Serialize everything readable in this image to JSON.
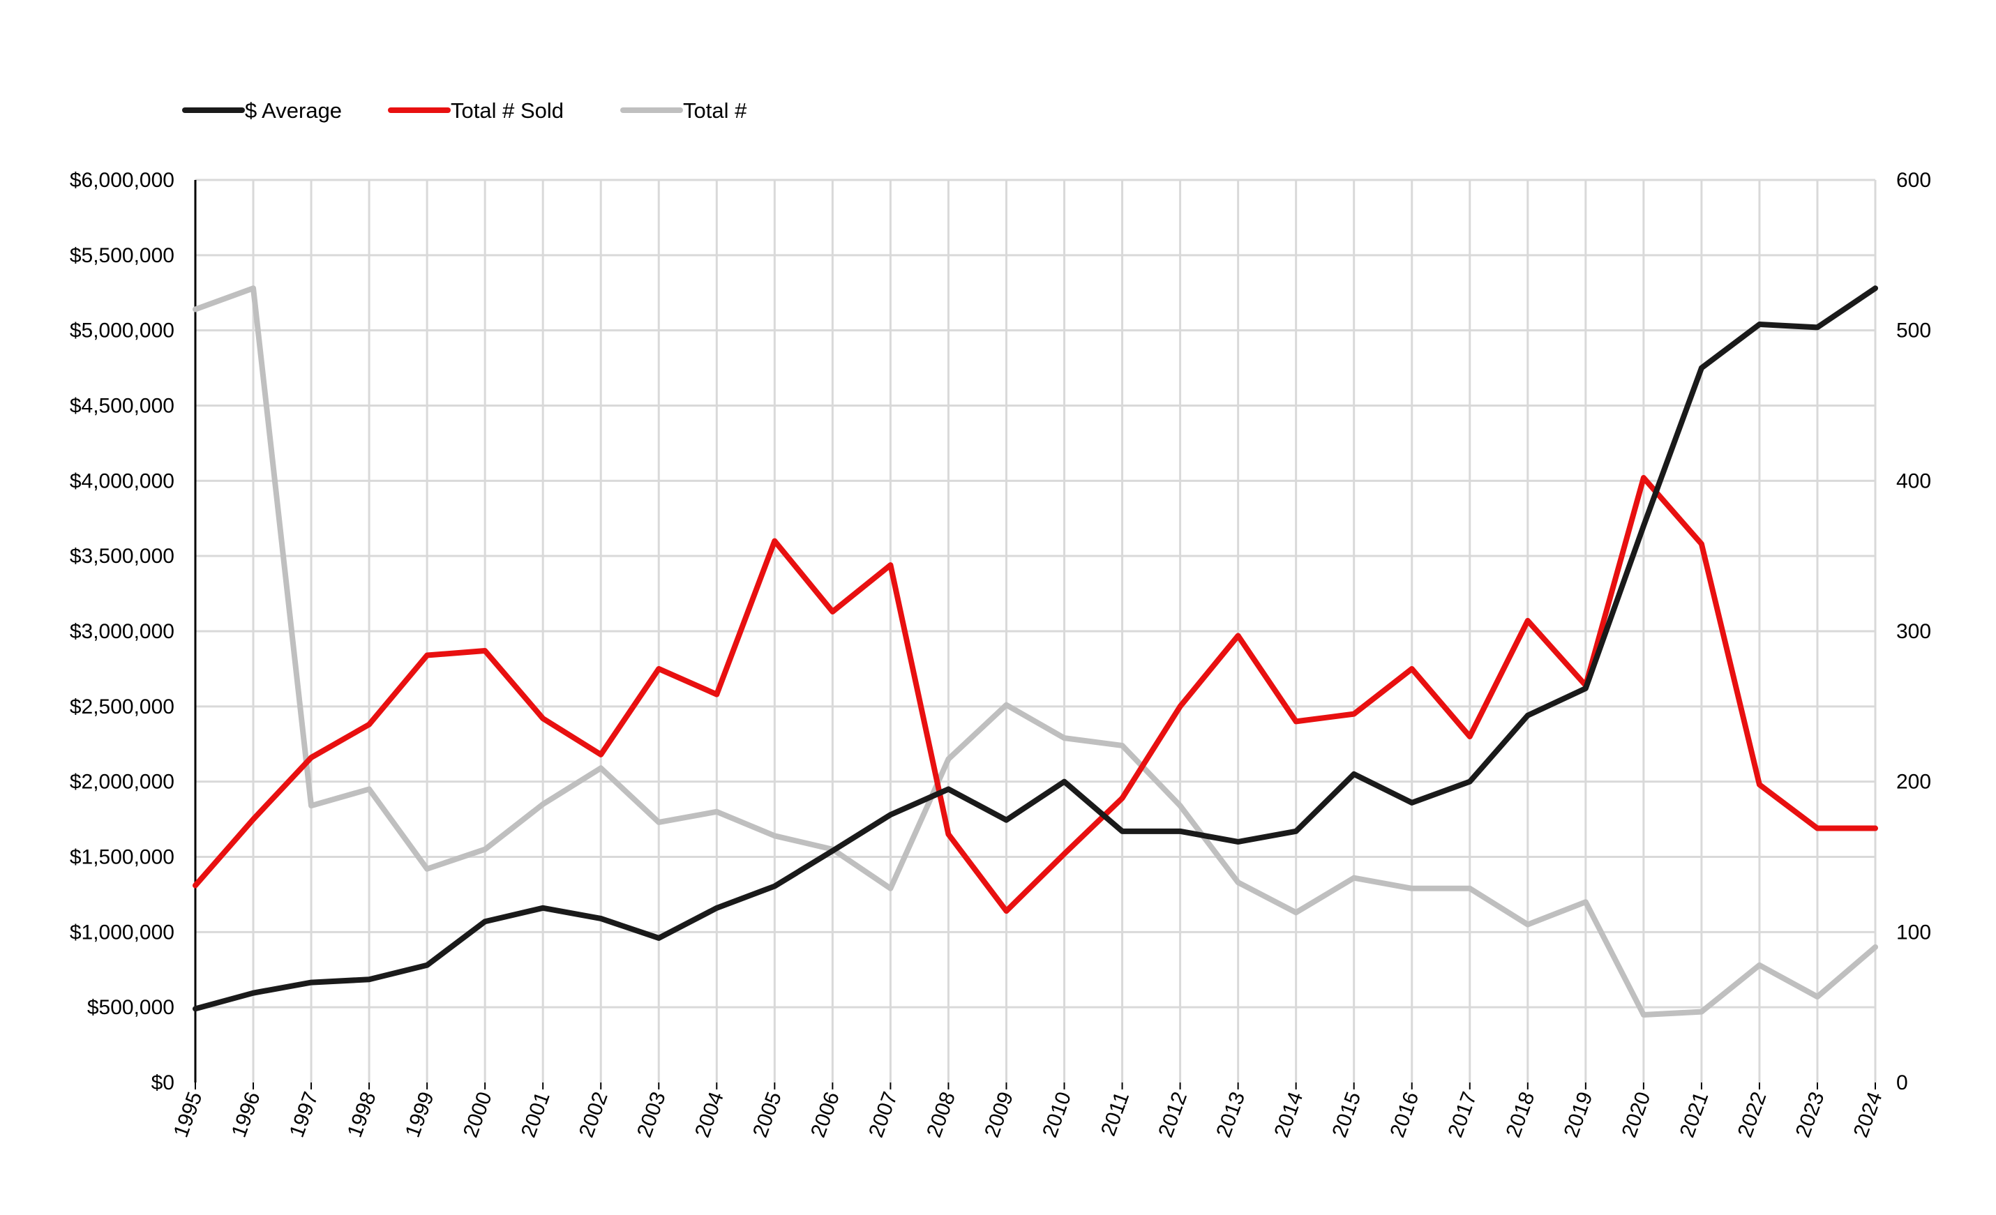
{
  "chart_data": {
    "type": "line",
    "title": "",
    "xlabel": "",
    "ylabel": "",
    "y2label": "",
    "grid": true,
    "legend_position": "top-left",
    "x": [
      "1995",
      "1996",
      "1997",
      "1998",
      "1999",
      "2000",
      "2001",
      "2002",
      "2003",
      "2004",
      "2005",
      "2006",
      "2007",
      "2008",
      "2009",
      "2010",
      "2011",
      "2012",
      "2013",
      "2014",
      "2015",
      "2016",
      "2017",
      "2018",
      "2019",
      "2020",
      "2021",
      "2022",
      "2023",
      "2024"
    ],
    "ylim": [
      0,
      6000000
    ],
    "y2lim": [
      0,
      600
    ],
    "left_ticks": [
      "$0",
      "$500,000",
      "$1,000,000",
      "$1,500,000",
      "$2,000,000",
      "$2,500,000",
      "$3,000,000",
      "$3,500,000",
      "$4,000,000",
      "$4,500,000",
      "$5,000,000",
      "$5,500,000",
      "$6,000,000"
    ],
    "right_ticks": [
      "0",
      "100",
      "200",
      "300",
      "400",
      "500",
      "600"
    ],
    "series": [
      {
        "name": "$ Average",
        "axis": "left",
        "color": "#1a1a1a",
        "values": [
          490000,
          595000,
          665000,
          685000,
          780000,
          1070000,
          1160000,
          1090000,
          960000,
          1160000,
          1305000,
          1540000,
          1780000,
          1950000,
          1745000,
          2000000,
          1670000,
          1670000,
          1600000,
          1670000,
          2050000,
          1860000,
          2000000,
          2440000,
          2620000,
          3700000,
          4750000,
          5040000,
          5020000,
          5280000
        ]
      },
      {
        "name": "Total # Sold",
        "axis": "right",
        "color": "#e81010",
        "values": [
          131,
          175,
          216,
          238,
          284,
          287,
          242,
          218,
          275,
          258,
          360,
          313,
          344,
          165,
          114,
          152,
          189,
          250,
          297,
          240,
          245,
          275,
          230,
          307,
          264,
          402,
          358,
          198,
          169,
          169
        ]
      },
      {
        "name": "Total #",
        "axis": "right",
        "color": "#bfbfbf",
        "values": [
          514,
          528,
          184,
          195,
          142,
          155,
          185,
          209,
          173,
          180,
          164,
          155,
          129,
          215,
          251,
          229,
          224,
          184,
          133,
          113,
          136,
          129,
          129,
          105,
          120,
          45,
          47,
          78,
          57,
          90
        ]
      }
    ]
  }
}
